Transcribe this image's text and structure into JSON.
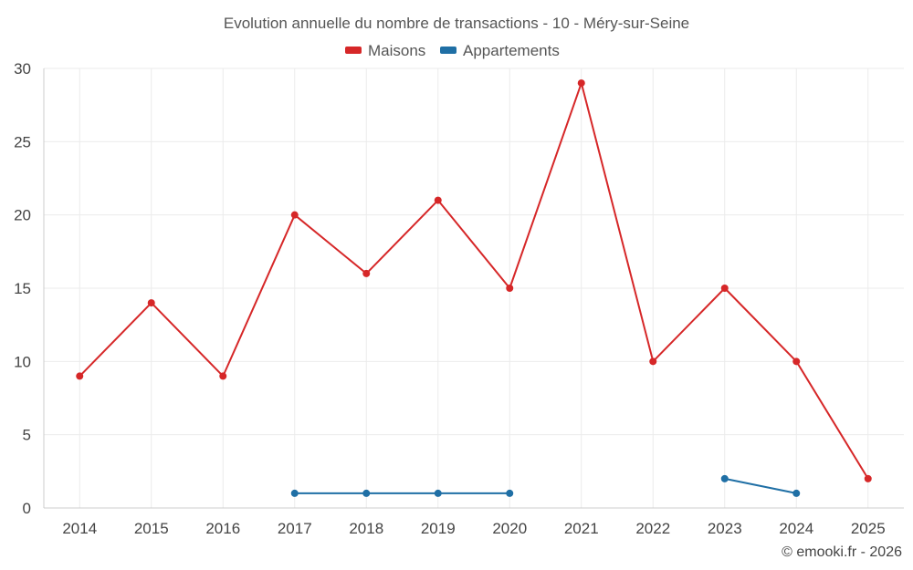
{
  "chart_data": {
    "type": "line",
    "title": "Evolution annuelle du nombre de transactions - 10 - Méry-sur-Seine",
    "categories": [
      "2014",
      "2015",
      "2016",
      "2017",
      "2018",
      "2019",
      "2020",
      "2021",
      "2022",
      "2023",
      "2024",
      "2025"
    ],
    "series": [
      {
        "name": "Maisons",
        "color": "#d62728",
        "values": [
          9,
          14,
          9,
          20,
          16,
          21,
          15,
          29,
          10,
          15,
          10,
          2
        ]
      },
      {
        "name": "Appartements",
        "color": "#1f6fa5",
        "values": [
          null,
          null,
          null,
          1,
          1,
          1,
          1,
          null,
          null,
          2,
          1,
          null
        ]
      }
    ],
    "yticks": [
      0,
      5,
      10,
      15,
      20,
      25,
      30
    ],
    "ylim": [
      0,
      30
    ],
    "xlabel": "",
    "ylabel": "",
    "legend_position": "top-center",
    "grid": true
  },
  "credit": "© emooki.fr - 2026"
}
